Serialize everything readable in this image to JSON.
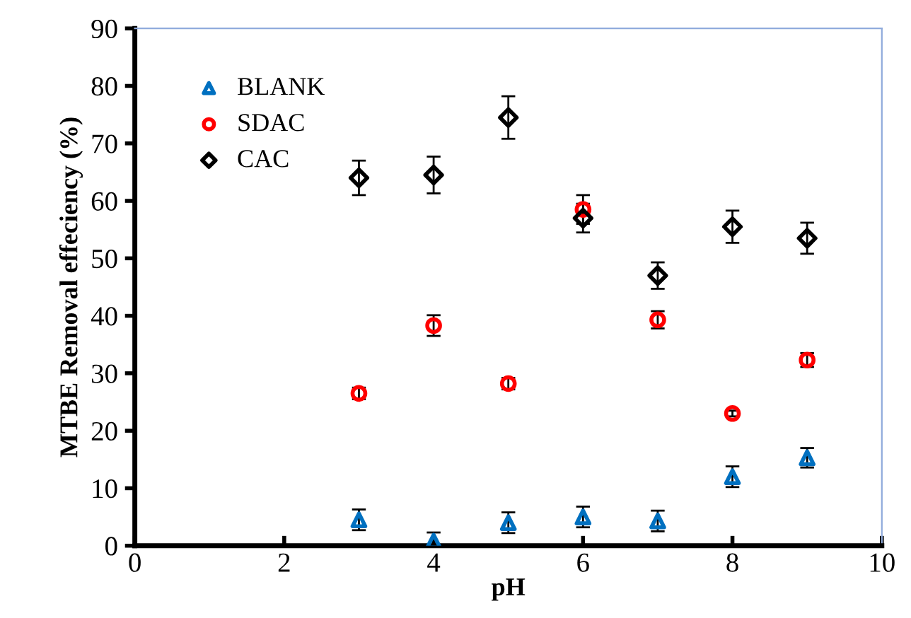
{
  "chart_data": {
    "type": "scatter",
    "xlabel": "pH",
    "ylabel": "MTBE Removal effeciency (%)",
    "xlim": [
      0,
      10
    ],
    "xticks": [
      0,
      2,
      4,
      6,
      8,
      10
    ],
    "ylim": [
      0,
      90
    ],
    "yticks": [
      0,
      10,
      20,
      30,
      40,
      50,
      60,
      70,
      80,
      90
    ],
    "grid": false,
    "legend": "top left",
    "series": [
      {
        "name": "BLANK",
        "color": "#0070c0",
        "marker": "triangle",
        "x": [
          3,
          4,
          5,
          6,
          7,
          8,
          9
        ],
        "values": [
          4.5,
          0.8,
          4,
          5,
          4.3,
          12,
          15.3
        ],
        "errors": [
          1.8,
          [
            0,
            2.3
          ],
          1.8,
          1.8,
          1.8,
          1.8,
          1.7
        ]
      },
      {
        "name": "SDAC",
        "color": "#ff0000",
        "marker": "circle",
        "x": [
          3,
          4,
          5,
          6,
          7,
          8,
          9
        ],
        "values": [
          26.5,
          38.3,
          28.2,
          58.5,
          39.3,
          23,
          32.3
        ],
        "errors": [
          1,
          1.8,
          1,
          2.5,
          1.5,
          0.5,
          1.2
        ]
      },
      {
        "name": "CAC",
        "color": "#000000",
        "marker": "diamond",
        "x": [
          3,
          4,
          5,
          6,
          7,
          8,
          9
        ],
        "values": [
          64,
          64.5,
          74.5,
          57,
          47,
          55.5,
          53.5
        ],
        "errors": [
          3,
          3.2,
          3.7,
          2.5,
          2.3,
          2.8,
          2.7
        ]
      }
    ]
  }
}
